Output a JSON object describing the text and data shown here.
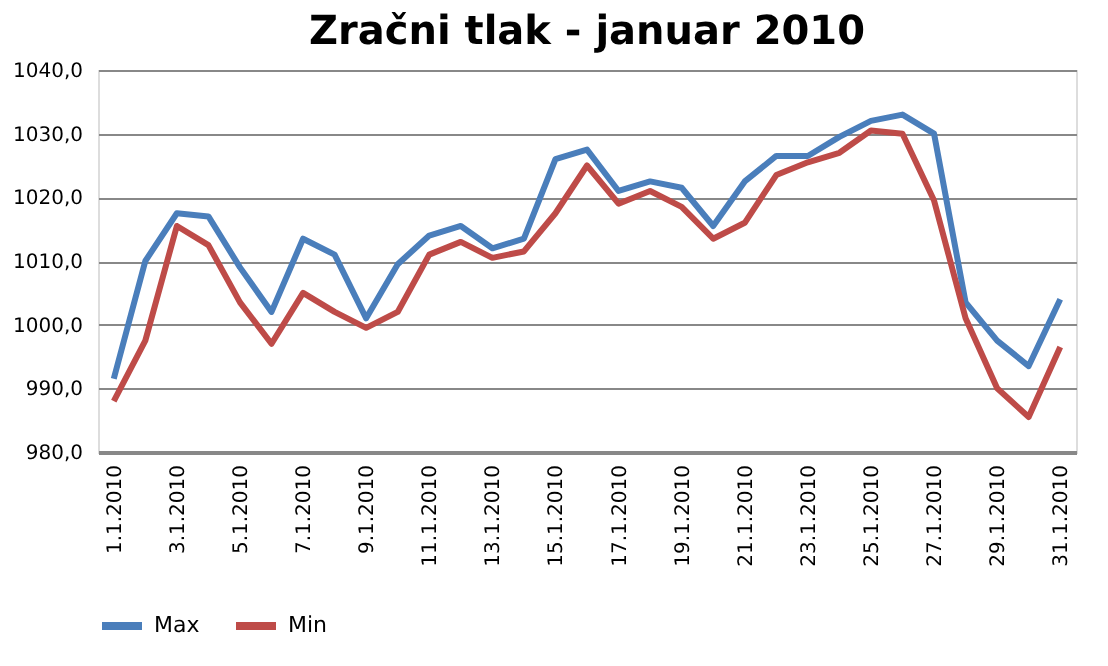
{
  "chart_data": {
    "type": "line",
    "title": "Zračni tlak - januar 2010",
    "categories": [
      "1.1.2010",
      null,
      "3.1.2010",
      null,
      "5.1.2010",
      null,
      "7.1.2010",
      null,
      "9.1.2010",
      null,
      "11.1.2010",
      null,
      "13.1.2010",
      null,
      "15.1.2010",
      null,
      "17.1.2010",
      null,
      "19.1.2010",
      null,
      "21.1.2010",
      null,
      "23.1.2010",
      null,
      "25.1.2010",
      null,
      "27.1.2010",
      null,
      "29.1.2010",
      null,
      "31.1.2010"
    ],
    "series": [
      {
        "name": "Max",
        "color": "#4a7ebb",
        "values": [
          991.5,
          1010,
          1017.5,
          1017,
          1009,
          1002,
          1013.5,
          1011,
          1001,
          1009.5,
          1014,
          1015.5,
          1012,
          1013.5,
          1026,
          1027.5,
          1021,
          1022.5,
          1021.5,
          1015.5,
          1022.5,
          1026.5,
          1026.5,
          1029.5,
          1032,
          1033,
          1030,
          1003.5,
          997.5,
          993.5,
          1004
        ]
      },
      {
        "name": "Min",
        "color": "#be4b48",
        "values": [
          988,
          997.5,
          1015.5,
          1012.5,
          1003.5,
          997,
          1005,
          1002,
          999.5,
          1002,
          1011,
          1013,
          1010.5,
          1011.5,
          1017.5,
          1025,
          1019,
          1021,
          1018.5,
          1013.5,
          1016,
          1023.5,
          1025.5,
          1027,
          1030.5,
          1030,
          1019.5,
          1001,
          990,
          985.5,
          996.5
        ]
      }
    ],
    "ylim": [
      980,
      1040
    ],
    "yticks": [
      {
        "value": 980,
        "label": "980,0"
      },
      {
        "value": 990,
        "label": "990,0"
      },
      {
        "value": 1000,
        "label": "1000,0"
      },
      {
        "value": 1010,
        "label": "1010,0"
      },
      {
        "value": 1020,
        "label": "1020,0"
      },
      {
        "value": 1030,
        "label": "1030,0"
      },
      {
        "value": 1040,
        "label": "1040,0"
      }
    ],
    "grid": "y",
    "legend": "bottom",
    "marker": "none",
    "line_style": "solid"
  }
}
